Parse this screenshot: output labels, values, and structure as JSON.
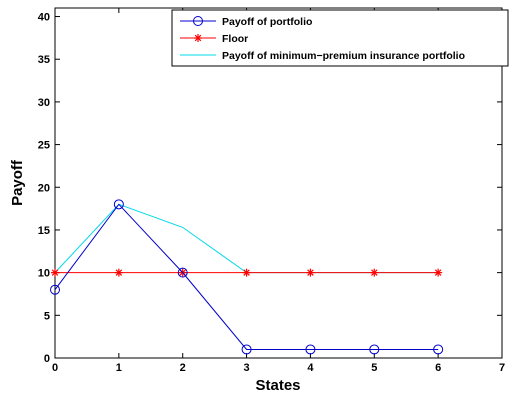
{
  "chart_data": {
    "type": "line",
    "title": "",
    "xlabel": "States",
    "ylabel": "Payoff",
    "xlim": [
      0,
      7
    ],
    "ylim": [
      0,
      41
    ],
    "xticks": [
      0,
      1,
      2,
      3,
      4,
      5,
      6,
      7
    ],
    "yticks": [
      0,
      5,
      10,
      15,
      20,
      25,
      30,
      35,
      40
    ],
    "grid": false,
    "legend_position": "top-right",
    "series": [
      {
        "name": "Payoff of portfolio",
        "color": "#0000cc",
        "marker": "circle",
        "x": [
          0,
          1,
          2,
          3,
          4,
          5,
          6
        ],
        "y": [
          8,
          18,
          10,
          1,
          1,
          1,
          1
        ]
      },
      {
        "name": "Floor",
        "color": "#ff0000",
        "marker": "star",
        "x": [
          0,
          1,
          2,
          3,
          4,
          5,
          6
        ],
        "y": [
          10,
          10,
          10,
          10,
          10,
          10,
          10
        ]
      },
      {
        "name": "Payoff of minimum−premium insurance portfolio",
        "color": "#00d8e8",
        "marker": "none",
        "x": [
          0,
          1,
          2,
          3,
          4,
          5,
          6
        ],
        "y": [
          10,
          18,
          15.3,
          10,
          10,
          10,
          10
        ]
      }
    ]
  }
}
